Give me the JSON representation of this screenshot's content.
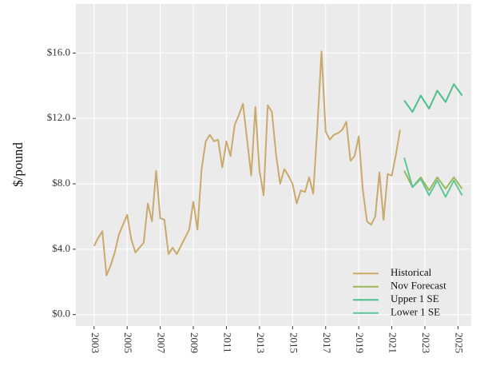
{
  "chart_data": {
    "type": "line",
    "y_label": "$/pound",
    "xlim": [
      2001.9,
      2025.8
    ],
    "ylim": [
      -0.7,
      19.0
    ],
    "xticks": [
      2003,
      2005,
      2007,
      2009,
      2011,
      2013,
      2015,
      2017,
      2019,
      2021,
      2023,
      2025
    ],
    "yticks": [
      {
        "value": 0,
        "label": "$0.0"
      },
      {
        "value": 4,
        "label": "$4.0"
      },
      {
        "value": 8,
        "label": "$8.0"
      },
      {
        "value": 12,
        "label": "$12.0"
      },
      {
        "value": 16,
        "label": "$16.0"
      }
    ],
    "grid": true,
    "legend_position": "bottom-right",
    "series": [
      {
        "name": "Historical",
        "color": "#c9a96c",
        "x": [
          2003,
          2003.25,
          2003.5,
          2003.75,
          2004,
          2004.25,
          2004.5,
          2004.75,
          2005,
          2005.25,
          2005.5,
          2005.75,
          2006,
          2006.25,
          2006.5,
          2006.75,
          2007,
          2007.25,
          2007.5,
          2007.75,
          2008,
          2008.25,
          2008.5,
          2008.75,
          2009,
          2009.25,
          2009.5,
          2009.75,
          2010,
          2010.25,
          2010.5,
          2010.75,
          2011,
          2011.25,
          2011.5,
          2011.75,
          2012,
          2012.25,
          2012.5,
          2012.75,
          2013,
          2013.25,
          2013.5,
          2013.75,
          2014,
          2014.25,
          2014.5,
          2014.75,
          2015,
          2015.25,
          2015.5,
          2015.75,
          2016,
          2016.25,
          2016.5,
          2016.75,
          2017,
          2017.25,
          2017.5,
          2017.75,
          2018,
          2018.25,
          2018.5,
          2018.75,
          2019,
          2019.25,
          2019.5,
          2019.75,
          2020,
          2020.25,
          2020.5,
          2020.75,
          2021,
          2021.25,
          2021.5
        ],
        "values": [
          4.2,
          4.7,
          5.1,
          2.4,
          3.0,
          3.8,
          4.9,
          5.5,
          6.1,
          4.6,
          3.8,
          4.1,
          4.4,
          6.8,
          5.7,
          8.8,
          5.9,
          5.8,
          3.7,
          4.1,
          3.7,
          4.2,
          4.7,
          5.2,
          6.9,
          5.2,
          8.9,
          10.6,
          11.0,
          10.6,
          10.7,
          9.0,
          10.6,
          9.7,
          11.6,
          12.2,
          12.9,
          10.7,
          8.5,
          12.7,
          8.8,
          7.3,
          12.8,
          12.4,
          9.8,
          8.0,
          8.9,
          8.5,
          8.0,
          6.8,
          7.6,
          7.5,
          8.4,
          7.4,
          11.5,
          16.1,
          11.2,
          10.7,
          11.0,
          11.1,
          11.3,
          11.8,
          9.4,
          9.7,
          10.9,
          7.6,
          5.7,
          5.5,
          6.0,
          8.7,
          5.8,
          8.6,
          8.5,
          9.8,
          11.3
        ]
      },
      {
        "name": "Nov Forecast",
        "color": "#9cb65a",
        "x": [
          2021.75,
          2022.25,
          2022.75,
          2023.25,
          2023.75,
          2024.25,
          2024.75,
          2025.25
        ],
        "values": [
          8.8,
          7.8,
          8.4,
          7.6,
          8.4,
          7.7,
          8.4,
          7.7
        ]
      },
      {
        "name": "Upper 1 SE",
        "color": "#4cbf8c",
        "x": [
          2021.75,
          2022.25,
          2022.75,
          2023.25,
          2023.75,
          2024.25,
          2024.75,
          2025.25
        ],
        "values": [
          13.1,
          12.4,
          13.4,
          12.6,
          13.7,
          13.0,
          14.1,
          13.4
        ]
      },
      {
        "name": "Lower 1 SE",
        "color": "#5cc896",
        "x": [
          2021.75,
          2022.25,
          2022.75,
          2023.25,
          2023.75,
          2024.25,
          2024.75,
          2025.25
        ],
        "values": [
          9.6,
          7.8,
          8.3,
          7.3,
          8.2,
          7.2,
          8.2,
          7.3
        ]
      }
    ]
  }
}
